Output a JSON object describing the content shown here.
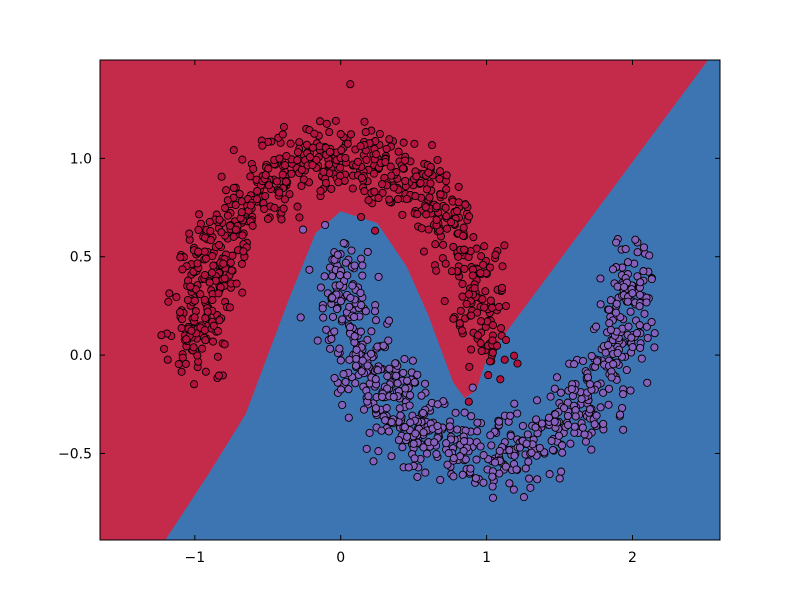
{
  "chart_data": {
    "type": "scatter",
    "title": "",
    "xlabel": "",
    "ylabel": "",
    "xlim": [
      -1.65,
      2.6
    ],
    "ylim": [
      -0.94,
      1.5
    ],
    "grid": false,
    "x_ticks": [
      {
        "value": -1,
        "label": "−1"
      },
      {
        "value": 0,
        "label": "0"
      },
      {
        "value": 1,
        "label": "1"
      },
      {
        "value": 2,
        "label": "2"
      }
    ],
    "y_ticks": [
      {
        "value": -0.5,
        "label": "−0.5"
      },
      {
        "value": 0,
        "label": "0.0"
      },
      {
        "value": 0.5,
        "label": "0.5"
      },
      {
        "value": 1,
        "label": "1.0"
      }
    ],
    "decision_regions": [
      {
        "class": 0,
        "color": "#c42a4a",
        "polygon": [
          [
            -1.65,
            1.5
          ],
          [
            2.52,
            1.5
          ],
          [
            1.0,
            -0.02
          ],
          [
            0.93,
            -0.18
          ],
          [
            0.85,
            -0.22
          ],
          [
            0.77,
            -0.14
          ],
          [
            0.6,
            0.2
          ],
          [
            0.45,
            0.45
          ],
          [
            0.25,
            0.67
          ],
          [
            0.0,
            0.73
          ],
          [
            -0.17,
            0.62
          ],
          [
            -0.35,
            0.29
          ],
          [
            -0.65,
            -0.3
          ],
          [
            -0.9,
            -0.6
          ],
          [
            -1.2,
            -0.94
          ],
          [
            -1.65,
            -0.94
          ]
        ]
      },
      {
        "class": 1,
        "color": "#3d75b2",
        "polygon": [
          [
            2.52,
            1.5
          ],
          [
            2.6,
            1.5
          ],
          [
            2.6,
            -0.94
          ],
          [
            -1.2,
            -0.94
          ],
          [
            -0.9,
            -0.6
          ],
          [
            -0.65,
            -0.3
          ],
          [
            -0.35,
            0.29
          ],
          [
            -0.17,
            0.62
          ],
          [
            0.0,
            0.73
          ],
          [
            0.25,
            0.67
          ],
          [
            0.45,
            0.45
          ],
          [
            0.6,
            0.2
          ],
          [
            0.77,
            -0.14
          ],
          [
            0.85,
            -0.22
          ],
          [
            0.93,
            -0.18
          ],
          [
            1.0,
            -0.02
          ]
        ]
      }
    ],
    "series": [
      {
        "class": 0,
        "color": "#b5133f",
        "shape": "upper arc",
        "center": [
          0,
          0
        ],
        "radius": 1.0,
        "angle_range_deg": [
          0,
          180
        ],
        "noise_sd": 0.1,
        "n_points": 750,
        "marker": "circle"
      },
      {
        "class": 1,
        "color": "#8660bd",
        "shape": "lower arc",
        "center": [
          1,
          0.5
        ],
        "radius": 1.0,
        "angle_range_deg": [
          180,
          360
        ],
        "noise_sd": 0.1,
        "n_points": 750,
        "marker": "circle"
      }
    ]
  }
}
